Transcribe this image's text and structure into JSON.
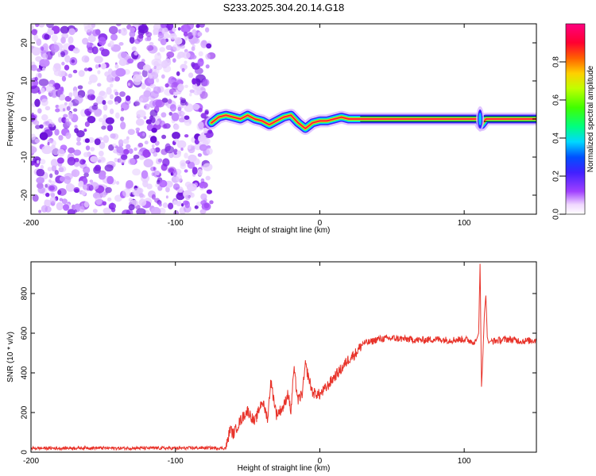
{
  "title": "S233.2025.304.20.14.G18",
  "chart_data": [
    {
      "type": "heatmap",
      "xlabel": "Height of straight line (km)",
      "ylabel": "Frequency (Hz)",
      "xlim": [
        -200,
        150
      ],
      "ylim": [
        -25,
        25
      ],
      "xticks": [
        -200,
        -100,
        0,
        100
      ],
      "yticks": [
        -20,
        -10,
        0,
        10,
        20
      ],
      "noise_region_x": [
        -200,
        -75
      ],
      "ridge": {
        "x": [
          -75,
          -70,
          -65,
          -60,
          -55,
          -50,
          -45,
          -40,
          -35,
          -30,
          -25,
          -20,
          -15,
          -10,
          -5,
          0,
          5,
          10,
          15,
          20,
          30,
          110,
          112,
          115,
          150
        ],
        "freq": [
          -1.0,
          0.5,
          1.0,
          0.5,
          0.0,
          1.0,
          0.0,
          -0.5,
          -1.5,
          -0.5,
          0.5,
          1.0,
          -1.0,
          -2.5,
          -1.0,
          -0.5,
          -0.5,
          0.0,
          0.5,
          0.0,
          0.0,
          0.0,
          -1.5,
          0.0,
          0.0
        ]
      },
      "colorbar": {
        "label": "Normalized spectral amplitude",
        "ticks": [
          0.0,
          0.2,
          0.4,
          0.6,
          0.8
        ],
        "range": [
          0,
          1
        ]
      }
    },
    {
      "type": "line",
      "xlabel": "Height of straight line (km)",
      "ylabel": "SNR (10 * v/v)",
      "xlim": [
        -200,
        150
      ],
      "ylim": [
        0,
        960
      ],
      "xticks": [
        -200,
        -100,
        0,
        100
      ],
      "yticks": [
        0,
        200,
        400,
        600,
        800
      ],
      "series": [
        {
          "name": "SNR",
          "color": "#e8332a",
          "x": [
            -200,
            -180,
            -160,
            -140,
            -120,
            -100,
            -80,
            -65,
            -62,
            -60,
            -55,
            -50,
            -45,
            -40,
            -36,
            -34,
            -30,
            -25,
            -22,
            -20,
            -18,
            -15,
            -12,
            -10,
            -5,
            0,
            5,
            10,
            15,
            20,
            25,
            30,
            35,
            40,
            50,
            60,
            70,
            80,
            90,
            100,
            105,
            108,
            110,
            111,
            112,
            113,
            114,
            115,
            116,
            117,
            118,
            120,
            130,
            140,
            150
          ],
          "values": [
            20,
            20,
            22,
            20,
            21,
            20,
            22,
            20,
            120,
            90,
            160,
            210,
            150,
            260,
            170,
            360,
            190,
            230,
            300,
            200,
            420,
            260,
            300,
            440,
            300,
            290,
            330,
            380,
            420,
            470,
            500,
            550,
            555,
            570,
            575,
            570,
            565,
            570,
            565,
            570,
            560,
            555,
            600,
            950,
            330,
            500,
            700,
            790,
            580,
            550,
            560,
            560,
            570,
            560,
            565
          ]
        }
      ]
    }
  ]
}
